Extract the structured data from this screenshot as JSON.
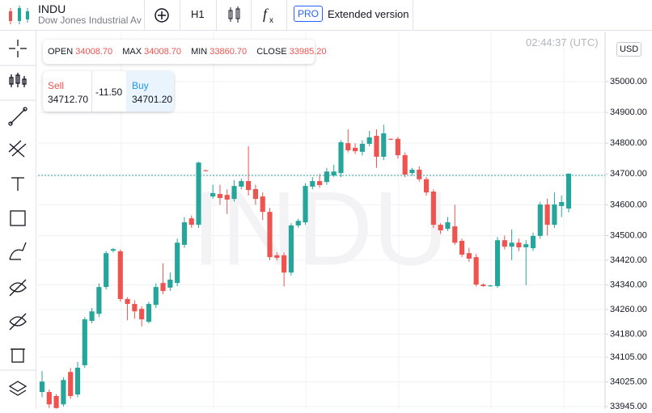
{
  "header": {
    "symbol": "INDU",
    "name": "Dow Jones Industrial Average",
    "timeframe": "H1",
    "badge": "PRO",
    "extended": "Extended version"
  },
  "ohlc": {
    "open_label": "OPEN",
    "open": "34008.70",
    "max_label": "MAX",
    "max": "34008.70",
    "min_label": "MIN",
    "min": "33860.70",
    "close_label": "CLOSE",
    "close": "33985.20"
  },
  "trade": {
    "sell_label": "Sell",
    "sell": "34712.70",
    "spread": "-11.50",
    "buy_label": "Buy",
    "buy": "34701.20"
  },
  "time": "02:44:37 (UTC)",
  "currency": "USD",
  "watermark": "INDU",
  "chart_data": {
    "type": "candlestick",
    "open": [
      33992,
      33992,
      33979,
      33952,
      34057,
      33984,
      34079,
      34223,
      34246,
      34333,
      34451,
      34449,
      34294,
      34278,
      34262,
      34220,
      34275,
      34346,
      34331,
      34346,
      34470,
      34556,
      34535,
      34712,
      34627,
      34635,
      34632,
      34619,
      34659,
      34677,
      34651,
      34627,
      34577,
      34436,
      34436,
      34380,
      34533,
      34543,
      34659,
      34677,
      34674,
      34695,
      34703,
      34800,
      34785,
      34772,
      34798,
      34824,
      34756,
      34814,
      34814,
      34761,
      34703,
      34714,
      34683,
      34643,
      34535,
      34522,
      34530,
      34483,
      34443,
      34430,
      34341,
      34336,
      34336,
      34485,
      34464,
      34477,
      34462,
      34459,
      34499,
      34601,
      34535,
      34596,
      34588
    ],
    "high": [
      34060,
      34000,
      33985,
      34040,
      34070,
      34090,
      34235,
      34265,
      34345,
      34450,
      34460,
      34455,
      34300,
      34290,
      34270,
      34285,
      34345,
      34410,
      34380,
      34490,
      34560,
      34565,
      34740,
      34714,
      34665,
      34665,
      34650,
      34680,
      34685,
      34790,
      34665,
      34640,
      34590,
      34445,
      34445,
      34540,
      34555,
      34670,
      34690,
      34700,
      34720,
      34730,
      34810,
      34845,
      34800,
      34810,
      34840,
      34845,
      34860,
      34816,
      34820,
      34770,
      34720,
      34725,
      34690,
      34650,
      34540,
      34560,
      34600,
      34490,
      34460,
      34440,
      34345,
      34340,
      34495,
      34500,
      34520,
      34490,
      34485,
      34510,
      34610,
      34620,
      34640,
      34630,
      34702
    ],
    "low": [
      33975,
      33940,
      33938,
      33945,
      33970,
      33975,
      34070,
      34215,
      34235,
      34325,
      34445,
      34285,
      34225,
      34230,
      34205,
      34215,
      34265,
      34310,
      34320,
      34335,
      34460,
      34525,
      34525,
      34708,
      34620,
      34600,
      34570,
      34610,
      34650,
      34630,
      34600,
      34550,
      34420,
      34420,
      34335,
      34370,
      34525,
      34535,
      34650,
      34655,
      34665,
      34690,
      34690,
      34770,
      34765,
      34760,
      34790,
      34720,
      34745,
      34810,
      34750,
      34690,
      34695,
      34675,
      34630,
      34525,
      34505,
      34515,
      34470,
      34430,
      34415,
      34335,
      34334,
      34334,
      34330,
      34455,
      34420,
      34450,
      34339,
      34450,
      34490,
      34500,
      34525,
      34560,
      34575
    ],
    "close": [
      34026,
      33952,
      33940,
      34031,
      33979,
      34071,
      34228,
      34254,
      34333,
      34443,
      34456,
      34294,
      34278,
      34254,
      34228,
      34278,
      34333,
      34320,
      34357,
      34477,
      34543,
      34535,
      34737,
      34710,
      34638,
      34622,
      34617,
      34661,
      34677,
      34648,
      34619,
      34577,
      34430,
      34428,
      34380,
      34533,
      34548,
      34661,
      34677,
      34664,
      34708,
      34708,
      34803,
      34777,
      34774,
      34798,
      34819,
      34756,
      34832,
      34812,
      34761,
      34698,
      34714,
      34683,
      34640,
      34535,
      34517,
      34543,
      34477,
      34438,
      34425,
      34341,
      34336,
      34338,
      34485,
      34464,
      34477,
      34462,
      34472,
      34499,
      34601,
      34535,
      34601,
      34609,
      34701
    ],
    "up_color": "#26a69a",
    "down_color": "#ef5350",
    "ylim": [
      33937,
      35160
    ],
    "yticks": [
      {
        "value": 33945,
        "label": "33945.00"
      },
      {
        "value": 34025,
        "label": "34025.00"
      },
      {
        "value": 34105,
        "label": "34105.00"
      },
      {
        "value": 34180,
        "label": "34180.00"
      },
      {
        "value": 34260,
        "label": "34260.00"
      },
      {
        "value": 34340,
        "label": "34340.00"
      },
      {
        "value": 34420,
        "label": "34420.00"
      },
      {
        "value": 34500,
        "label": "34500.00"
      },
      {
        "value": 34600,
        "label": "34600.00"
      },
      {
        "value": 34700,
        "label": "34700.00"
      },
      {
        "value": 34800,
        "label": "34800.00"
      },
      {
        "value": 34900,
        "label": "34900.00"
      },
      {
        "value": 35000,
        "label": "35000.00"
      }
    ],
    "grid": true,
    "current_price": 34695,
    "price_line_color": "#26a69a"
  }
}
